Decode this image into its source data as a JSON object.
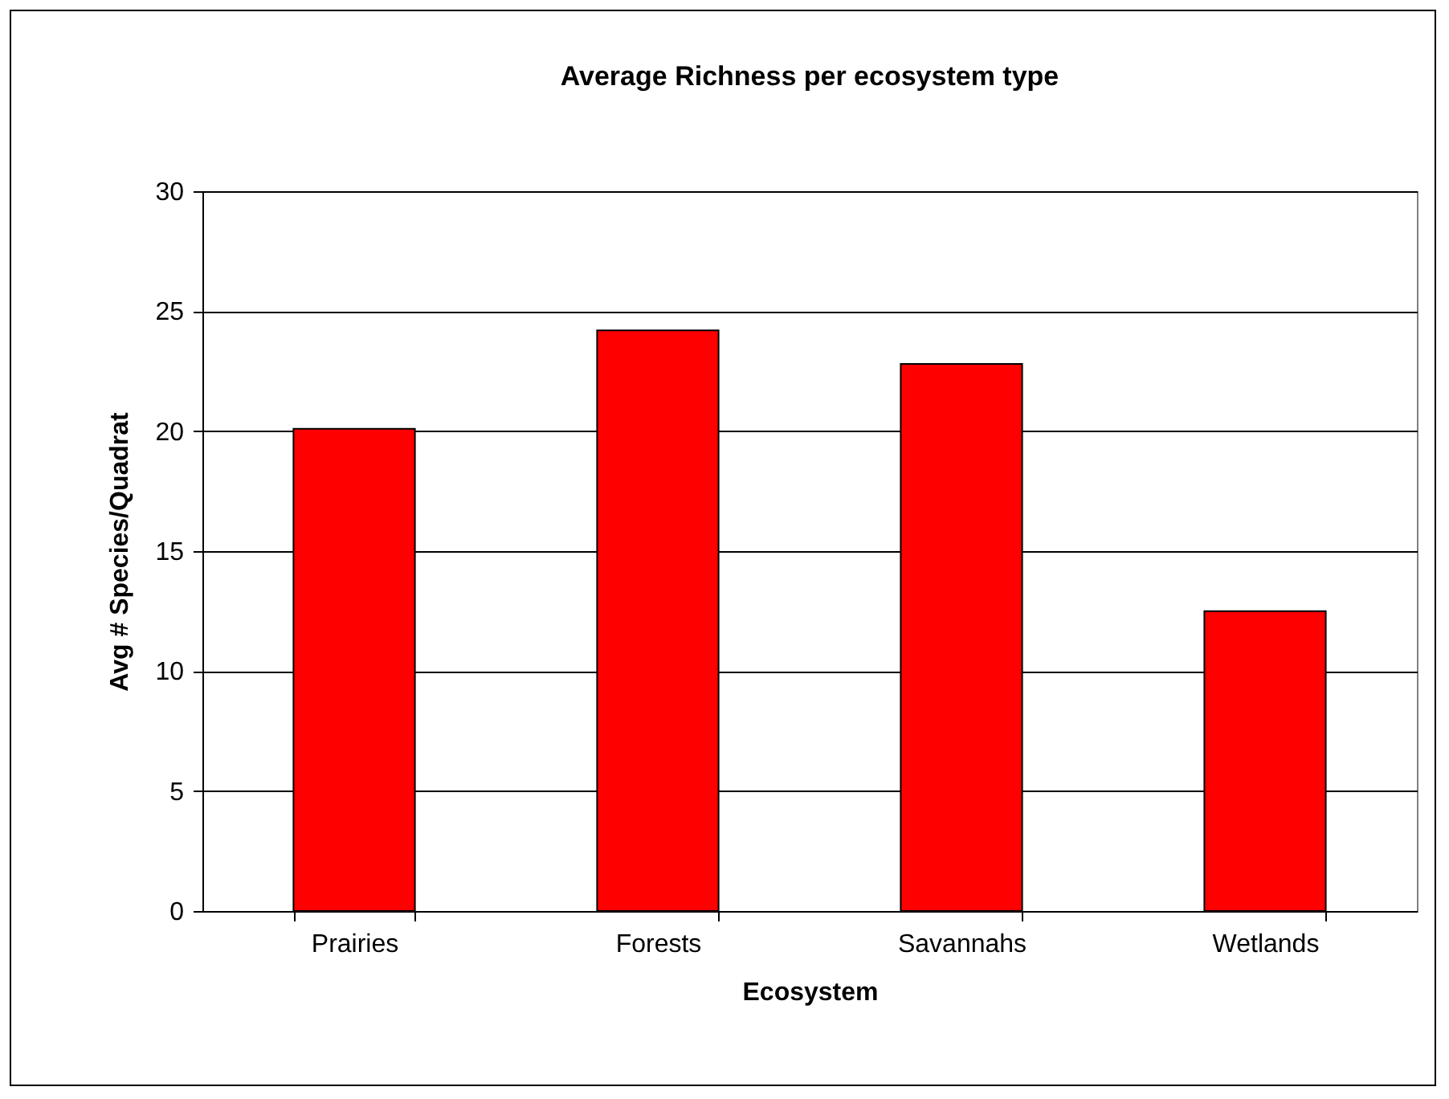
{
  "chart_data": {
    "type": "bar",
    "title": "Average Richness per ecosystem type",
    "xlabel": "Ecosystem",
    "ylabel": "Avg # Species/Quadrat",
    "categories": [
      "Prairies",
      "Forests",
      "Savannahs",
      "Wetlands"
    ],
    "values": [
      20.1,
      24.2,
      22.8,
      12.5
    ],
    "color": "#ff0000",
    "ylim": [
      0,
      30
    ],
    "yticks": [
      0,
      5,
      10,
      15,
      20,
      25,
      30
    ],
    "grid": "y"
  }
}
